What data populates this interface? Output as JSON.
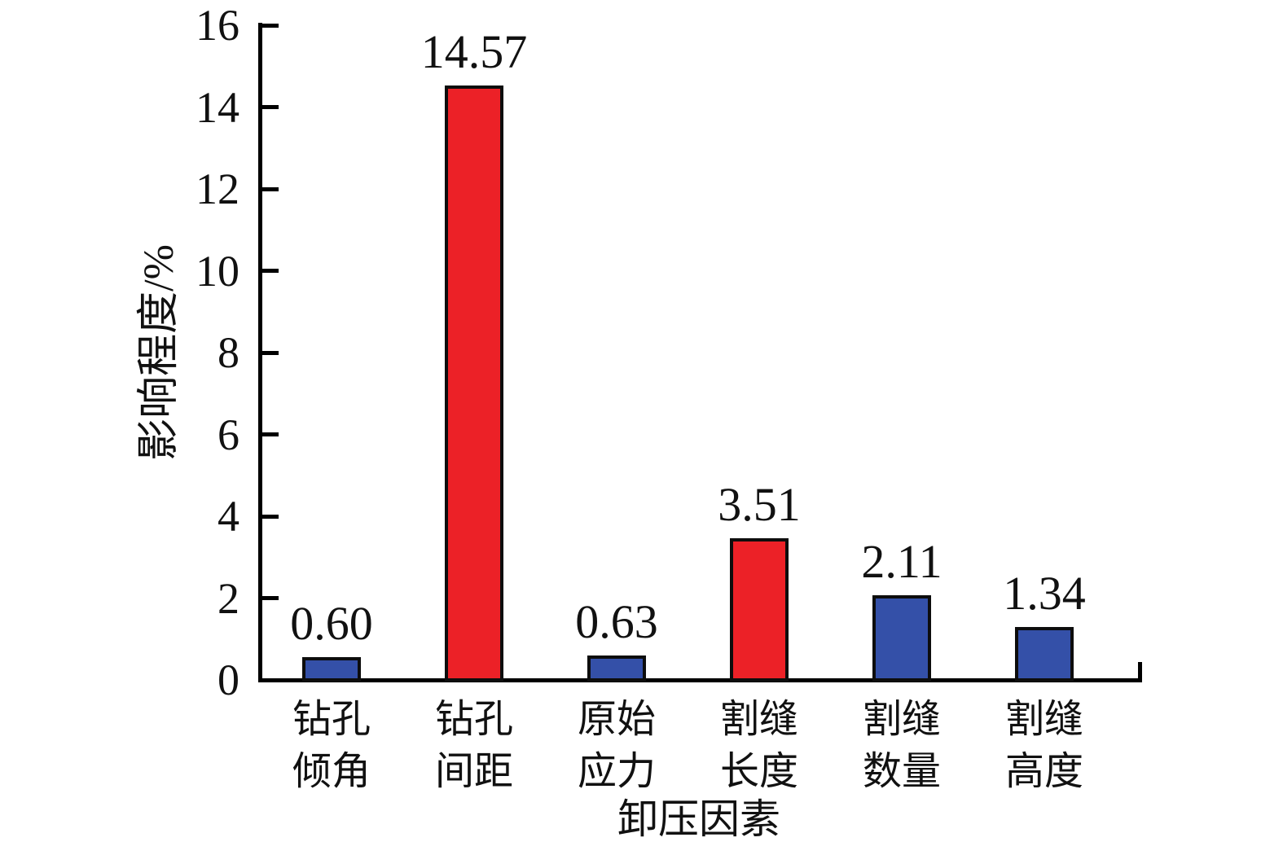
{
  "chart_data": {
    "type": "bar",
    "title": "",
    "xlabel": "卸压因素",
    "ylabel": "影响程度/%",
    "categories": [
      [
        "钻孔",
        "倾角"
      ],
      [
        "钻孔",
        "间距"
      ],
      [
        "原始",
        "应力"
      ],
      [
        "割缝",
        "长度"
      ],
      [
        "割缝",
        "数量"
      ],
      [
        "割缝",
        "高度"
      ]
    ],
    "values": [
      0.6,
      14.57,
      0.63,
      3.51,
      2.11,
      1.34
    ],
    "value_labels": [
      "0.60",
      "14.57",
      "0.63",
      "3.51",
      "2.11",
      "1.34"
    ],
    "bar_colors": [
      "#3450A8",
      "#EC2127",
      "#3450A8",
      "#EC2127",
      "#3450A8",
      "#3450A8"
    ],
    "ylim": [
      0,
      16
    ],
    "yticks": [
      0,
      2,
      4,
      6,
      8,
      10,
      12,
      14,
      16
    ],
    "grid": false,
    "legend": null
  },
  "colors": {
    "bar_blue": "#3450A8",
    "bar_red": "#EC2127",
    "axis": "#000000",
    "text": "#111111"
  }
}
